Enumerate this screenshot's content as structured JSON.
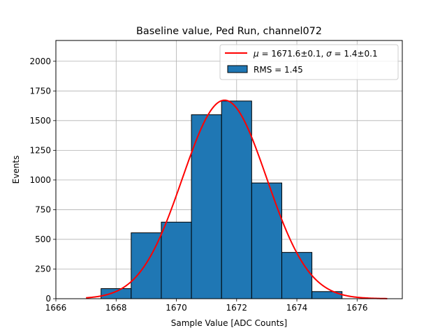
{
  "chart_data": {
    "type": "bar",
    "title": "Baseline value, Ped Run, channel072",
    "xlabel": "Sample Value [ADC Counts]",
    "ylabel": "Events",
    "xlim": [
      1666,
      1677.5
    ],
    "ylim": [
      0,
      2175
    ],
    "xticks": [
      1666,
      1668,
      1670,
      1672,
      1674,
      1676
    ],
    "yticks": [
      0,
      250,
      500,
      750,
      1000,
      1250,
      1500,
      1750,
      2000
    ],
    "grid": true,
    "legend_position": "top-right",
    "histogram": {
      "name": "RMS = 1.45",
      "color": "#1f77b4",
      "edge_color": "#000000",
      "bins": [
        {
          "x0": 1667.5,
          "x1": 1668.5,
          "count": 85
        },
        {
          "x0": 1668.5,
          "x1": 1669.5,
          "count": 555
        },
        {
          "x0": 1669.5,
          "x1": 1670.5,
          "count": 645
        },
        {
          "x0": 1670.5,
          "x1": 1671.5,
          "count": 1550
        },
        {
          "x0": 1671.5,
          "x1": 1672.5,
          "count": 1665
        },
        {
          "x0": 1672.5,
          "x1": 1673.5,
          "count": 975
        },
        {
          "x0": 1673.5,
          "x1": 1674.5,
          "count": 390
        },
        {
          "x0": 1674.5,
          "x1": 1675.5,
          "count": 60
        }
      ]
    },
    "fit": {
      "name": "μ = 1671.6±0.1, σ = 1.4±0.1",
      "color": "#ff0000",
      "mu": 1671.6,
      "sigma": 1.4,
      "amplitude": 1672,
      "x_range": [
        1667,
        1677
      ]
    },
    "legend": [
      {
        "kind": "line",
        "mu_label": "μ",
        "mu_text": " = 1671.6±0.1, ",
        "sigma_label": "σ",
        "sigma_text": " = 1.4±0.1"
      },
      {
        "kind": "patch",
        "label": "RMS = 1.45"
      }
    ]
  }
}
